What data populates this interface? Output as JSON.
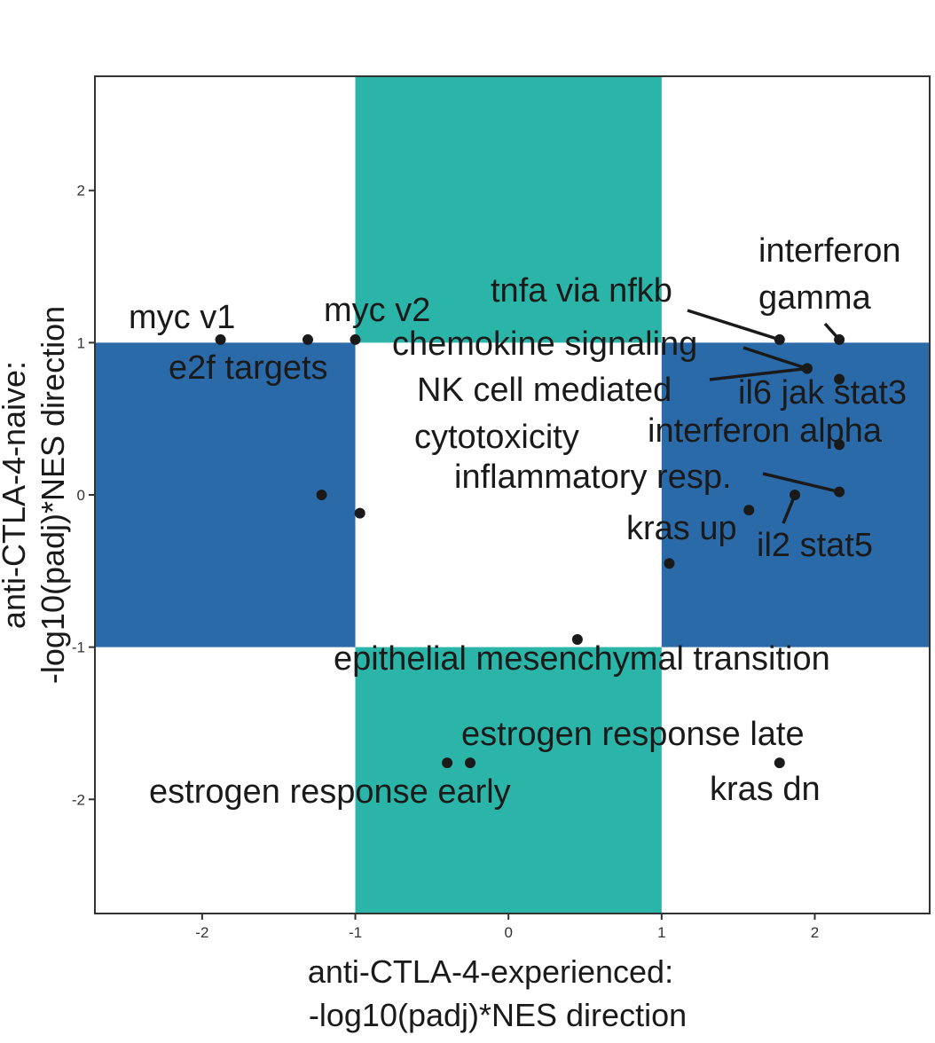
{
  "chart_data": {
    "type": "scatter",
    "title": "",
    "xlabel": [
      "anti-CTLA-4-experienced:",
      "-log10(padj)*NES direction"
    ],
    "ylabel": [
      "anti-CTLA-4-naive:",
      "-log10(padj)*NES direction"
    ],
    "xlim": [
      -2.7,
      2.75
    ],
    "ylim": [
      -2.75,
      2.75
    ],
    "x_ticks": [
      -2,
      -1,
      0,
      1,
      2
    ],
    "y_ticks": [
      -2,
      -1,
      0,
      1,
      2
    ],
    "x_tick_labels": [
      "-2",
      "-1",
      "0",
      "1",
      "2"
    ],
    "y_tick_labels": [
      "-2",
      "-1",
      "0",
      "1",
      "2"
    ],
    "grid": false,
    "legend": "none",
    "colors": {
      "teal_band": "#2ab5a8",
      "blue_band": "#2b6aa8",
      "point": "#1a1a1a",
      "border": "#333333"
    },
    "bands": [
      {
        "orientation": "vertical",
        "x_range": [
          -1,
          1
        ],
        "y_range": [
          1,
          2.75
        ],
        "color": "teal_band"
      },
      {
        "orientation": "vertical",
        "x_range": [
          -1,
          1
        ],
        "y_range": [
          -2.75,
          -1
        ],
        "color": "teal_band"
      },
      {
        "orientation": "horizontal",
        "x_range": [
          -2.7,
          -1
        ],
        "y_range": [
          -1,
          1
        ],
        "color": "blue_band"
      },
      {
        "orientation": "horizontal",
        "x_range": [
          1,
          2.75
        ],
        "y_range": [
          -1,
          1
        ],
        "color": "blue_band"
      }
    ],
    "points": [
      {
        "label": "myc v1",
        "x": -1.88,
        "y": 1.02
      },
      {
        "label": "e2f targets",
        "x": -1.31,
        "y": 1.02
      },
      {
        "label": "myc v2",
        "x": -1.0,
        "y": 1.02
      },
      {
        "label": "",
        "x": -1.22,
        "y": 0.0
      },
      {
        "label": "",
        "x": -0.97,
        "y": -0.12
      },
      {
        "label": "tnfa via nfkb",
        "x": 1.77,
        "y": 1.02
      },
      {
        "label": "interferon gamma",
        "x": 2.16,
        "y": 1.02
      },
      {
        "label": "chemokine signaling",
        "x": 1.95,
        "y": 0.83
      },
      {
        "label": "NK cell mediated cytotoxicity",
        "x": 1.95,
        "y": 0.83
      },
      {
        "label": "il6 jak stat3",
        "x": 2.16,
        "y": 0.76
      },
      {
        "label": "interferon alpha",
        "x": 2.16,
        "y": 0.33
      },
      {
        "label": "inflammatory resp.",
        "x": 2.16,
        "y": 0.02
      },
      {
        "label": "il2 stat5",
        "x": 1.87,
        "y": 0.0
      },
      {
        "label": "kras up",
        "x": 1.57,
        "y": -0.1
      },
      {
        "label": "",
        "x": 1.05,
        "y": -0.45
      },
      {
        "label": "epithelial mesenchymal transition",
        "x": 0.45,
        "y": -0.95
      },
      {
        "label": "estrogen response late",
        "x": -0.25,
        "y": -1.76
      },
      {
        "label": "estrogen response early",
        "x": -0.4,
        "y": -1.76
      },
      {
        "label": "kras dn",
        "x": 1.77,
        "y": -1.76
      }
    ]
  }
}
